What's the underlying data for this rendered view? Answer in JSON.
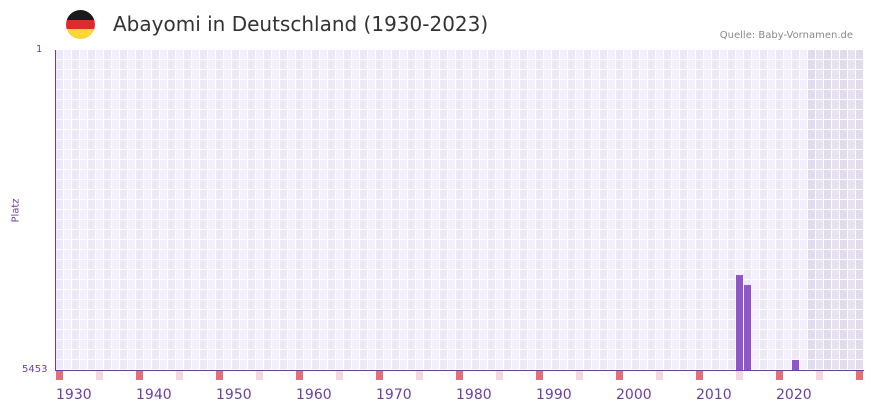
{
  "header": {
    "title": "Abayomi in Deutschland (1930-2023)",
    "source": "Quelle: Baby-Vornamen.de",
    "flag": {
      "name": "germany-flag-icon",
      "colors": [
        "#1a1a1a",
        "#dd2a2a",
        "#fcd634"
      ]
    }
  },
  "axis": {
    "y_top": "1",
    "y_bottom": "5453",
    "y_title": "Platz",
    "x_ticks": [
      "1930",
      "1940",
      "1950",
      "1960",
      "1970",
      "1980",
      "1990",
      "2000",
      "2010",
      "2020"
    ]
  },
  "colors": {
    "bar": "#8e56c8",
    "axis": "#6b3fa0",
    "cell_a": "#ede8f8",
    "cell_b": "#f3f0fb",
    "future_a": "#e0dcee",
    "future_b": "#e6e3f0",
    "marker_decade": "#e0707a",
    "marker_half": "#f5d8df"
  },
  "chart_data": {
    "type": "bar",
    "title": "Abayomi in Deutschland (1930-2023)",
    "xlabel": "",
    "ylabel": "Platz",
    "y_inverted": true,
    "ylim": [
      1,
      5453
    ],
    "x_range": [
      1930,
      2030
    ],
    "shaded_future_from": 2024,
    "categories": [
      2015,
      2016,
      2022
    ],
    "values": [
      3840,
      4010,
      5280
    ],
    "x_tick_labels": [
      "1930",
      "1940",
      "1950",
      "1960",
      "1970",
      "1980",
      "1990",
      "2000",
      "2010",
      "2020"
    ],
    "legend": [],
    "grid": true
  }
}
